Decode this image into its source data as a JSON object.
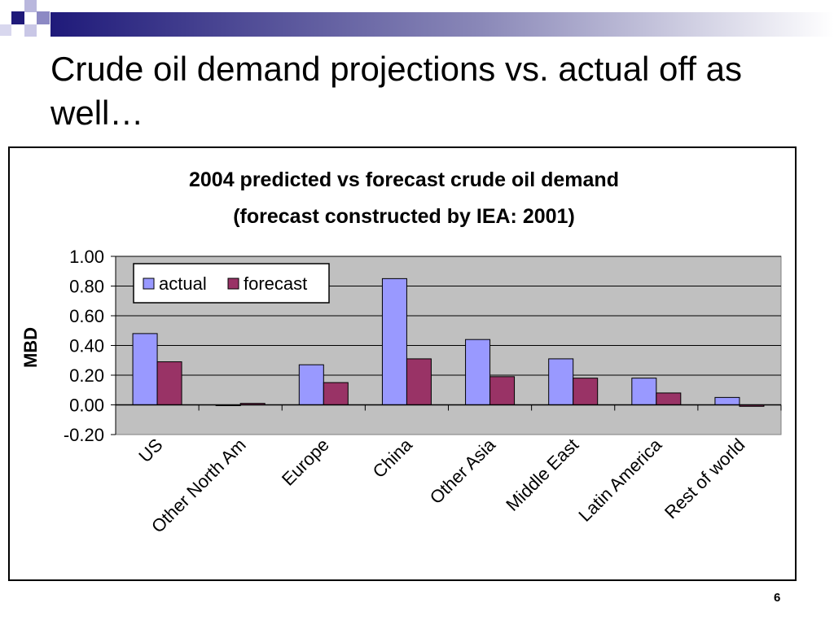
{
  "slide": {
    "title": "Crude oil demand projections vs. actual off as well…",
    "page_number": "6"
  },
  "colors": {
    "actual": "#9999ff",
    "forecast": "#993366",
    "plot_background": "#c0c0c0",
    "deco_navy": "#1f1a7a"
  },
  "chart_data": {
    "type": "bar",
    "title": "2004 predicted vs forecast crude oil demand",
    "subtitle": "(forecast constructed by IEA: 2001)",
    "ylabel": "MBD",
    "xlabel": "",
    "categories": [
      "US",
      "Other North Am",
      "Europe",
      "China",
      "Other Asia",
      "Middle East",
      "Latin America",
      "Rest of world"
    ],
    "series": [
      {
        "name": "actual",
        "values": [
          0.48,
          0.0,
          0.27,
          0.85,
          0.44,
          0.31,
          0.18,
          0.05
        ]
      },
      {
        "name": "forecast",
        "values": [
          0.29,
          0.01,
          0.15,
          0.31,
          0.19,
          0.18,
          0.08,
          -0.01
        ]
      }
    ],
    "ylim": [
      -0.2,
      1.0
    ],
    "yticks": [
      "1.00",
      "0.80",
      "0.60",
      "0.40",
      "0.20",
      "0.00",
      "-0.20"
    ],
    "ytick_values": [
      1.0,
      0.8,
      0.6,
      0.4,
      0.2,
      0.0,
      -0.2
    ],
    "grid": true,
    "legend_position": "top-left"
  }
}
